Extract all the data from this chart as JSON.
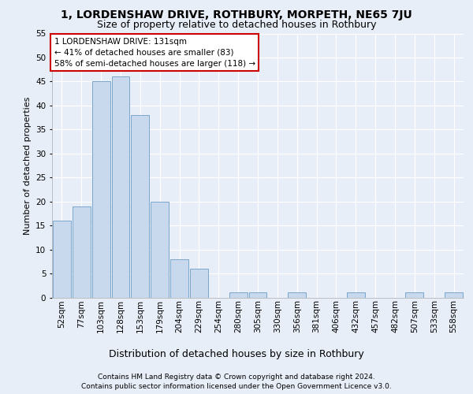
{
  "title1": "1, LORDENSHAW DRIVE, ROTHBURY, MORPETH, NE65 7JU",
  "title2": "Size of property relative to detached houses in Rothbury",
  "xlabel": "Distribution of detached houses by size in Rothbury",
  "ylabel": "Number of detached properties",
  "footnote1": "Contains HM Land Registry data © Crown copyright and database right 2024.",
  "footnote2": "Contains public sector information licensed under the Open Government Licence v3.0.",
  "categories": [
    "52sqm",
    "77sqm",
    "103sqm",
    "128sqm",
    "153sqm",
    "179sqm",
    "204sqm",
    "229sqm",
    "254sqm",
    "280sqm",
    "305sqm",
    "330sqm",
    "356sqm",
    "381sqm",
    "406sqm",
    "432sqm",
    "457sqm",
    "482sqm",
    "507sqm",
    "533sqm",
    "558sqm"
  ],
  "values": [
    16,
    19,
    45,
    46,
    38,
    20,
    8,
    6,
    0,
    1,
    1,
    0,
    1,
    0,
    0,
    1,
    0,
    0,
    1,
    0,
    1
  ],
  "bar_color": "#c9d9ed",
  "bar_edge_color": "#7ba7cc",
  "highlight_bar_index": 3,
  "highlight_bar_edge_color": "#222222",
  "ylim": [
    0,
    55
  ],
  "yticks": [
    0,
    5,
    10,
    15,
    20,
    25,
    30,
    35,
    40,
    45,
    50,
    55
  ],
  "annotation_text": "1 LORDENSHAW DRIVE: 131sqm\n← 41% of detached houses are smaller (83)\n58% of semi-detached houses are larger (118) →",
  "annotation_box_facecolor": "#ffffff",
  "annotation_box_edgecolor": "#cc0000",
  "background_color": "#e8eef8",
  "grid_color": "#ffffff",
  "title1_fontsize": 10,
  "title2_fontsize": 9,
  "ylabel_fontsize": 8,
  "xlabel_fontsize": 9,
  "tick_fontsize": 7.5,
  "annotation_fontsize": 7.5,
  "footnote_fontsize": 6.5
}
